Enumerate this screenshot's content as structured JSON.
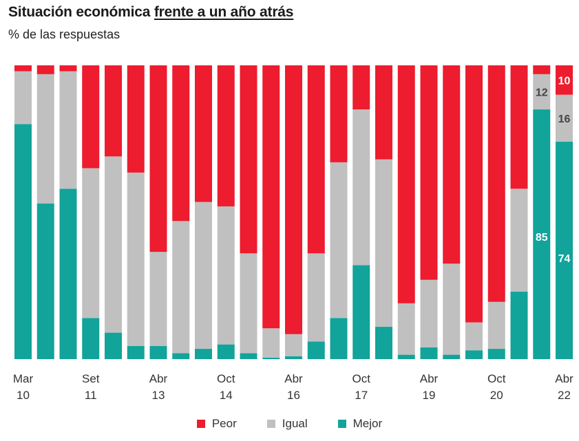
{
  "header": {
    "title_prefix": "Situación económica ",
    "title_underlined": "frente a un año atrás",
    "subtitle": "% de las respuestas"
  },
  "colors": {
    "peor": "#ed1c2e",
    "igual": "#c0c0c0",
    "mejor": "#12a39a"
  },
  "chart_data": {
    "type": "bar",
    "stacked": true,
    "title": "Situación económica frente a un año atrás",
    "subtitle": "% de las respuestas",
    "ylim": [
      0,
      100
    ],
    "grid": false,
    "legend_position": "bottom",
    "tick_labels": [
      {
        "index": 0,
        "month": "Mar",
        "year": "10"
      },
      {
        "index": 3,
        "month": "Set",
        "year": "11"
      },
      {
        "index": 6,
        "month": "Abr",
        "year": "13"
      },
      {
        "index": 9,
        "month": "Oct",
        "year": "14"
      },
      {
        "index": 12,
        "month": "Abr",
        "year": "16"
      },
      {
        "index": 15,
        "month": "Oct",
        "year": "17"
      },
      {
        "index": 18,
        "month": "Abr",
        "year": "19"
      },
      {
        "index": 21,
        "month": "Oct",
        "year": "20"
      },
      {
        "index": 24,
        "month": "Abr",
        "year": "22"
      }
    ],
    "series": [
      {
        "name": "Mejor",
        "values": [
          80,
          53,
          58,
          14,
          9,
          4.5,
          4.5,
          2,
          3.5,
          5,
          2,
          0.5,
          1,
          6,
          14,
          32,
          11,
          1.5,
          4,
          1.5,
          3,
          3.5,
          23,
          85,
          74
        ]
      },
      {
        "name": "Igual",
        "values": [
          18,
          44,
          40,
          51,
          60,
          59,
          32,
          45,
          50,
          47,
          34,
          10,
          7.5,
          30,
          53,
          53,
          57,
          17.5,
          23,
          31,
          9.5,
          16,
          35,
          12,
          16
        ]
      },
      {
        "name": "Peor",
        "values": [
          2,
          3,
          2,
          35,
          31,
          36.5,
          63.5,
          53,
          46.5,
          48,
          64,
          89.5,
          91.5,
          64,
          33,
          15,
          32,
          81,
          73,
          67.5,
          87.5,
          80.5,
          42,
          3,
          10
        ]
      }
    ],
    "data_labels": [
      {
        "index": 23,
        "series": "Mejor",
        "text": "85"
      },
      {
        "index": 23,
        "series": "Igual",
        "text": "12"
      },
      {
        "index": 24,
        "series": "Mejor",
        "text": "74"
      },
      {
        "index": 24,
        "series": "Igual",
        "text": "16"
      },
      {
        "index": 24,
        "series": "Peor",
        "text": "10"
      }
    ]
  },
  "legend": [
    {
      "label": "Peor",
      "color": "#ed1c2e"
    },
    {
      "label": "Igual",
      "color": "#c0c0c0"
    },
    {
      "label": "Mejor",
      "color": "#12a39a"
    }
  ]
}
